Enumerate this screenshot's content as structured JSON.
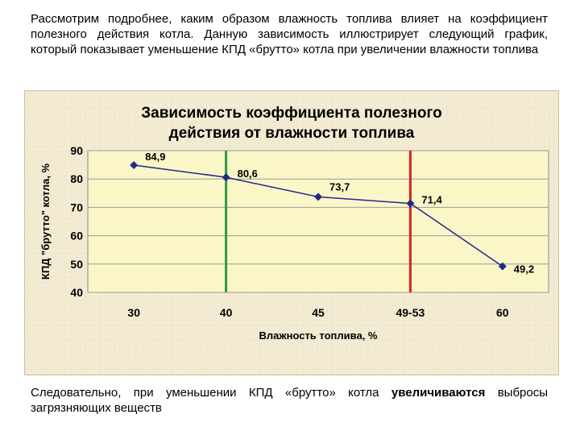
{
  "intro": {
    "text": "Рассмотрим подробнее, каким образом влажность топлива влияет на коэффициент полезного действия котла. Данную зависимость иллюстрирует следующий график, который показывает уменьшение КПД «брутто» котла при увеличении влажности топлива"
  },
  "outro": {
    "text_part1": "Следовательно, при уменьшении КПД «брутто» котла ",
    "text_bold": "увеличиваются",
    "text_part2": " выбросы загрязняющих веществ"
  },
  "chart_data": {
    "type": "line",
    "title_line1": "Зависимость коэффициента полезного",
    "title_line2": "действия от влажности топлива",
    "xlabel": "Влажность топлива, %",
    "ylabel": "КПД \"брутто\" котла, %",
    "categories": [
      "30",
      "40",
      "45",
      "49-53",
      "60"
    ],
    "values": [
      84.9,
      80.6,
      73.7,
      71.4,
      49.2
    ],
    "data_labels": [
      "84,9",
      "80,6",
      "73,7",
      "71,4",
      "49,2"
    ],
    "ylim": [
      40,
      90
    ],
    "yticks": [
      "40",
      "50",
      "60",
      "70",
      "80",
      "90"
    ],
    "grid": "horizontal",
    "line_color": "#1f2a8a",
    "plot_bg": "#fbf6c8",
    "vertical_markers": [
      {
        "category": "40",
        "color": "#2e9a4a"
      },
      {
        "category": "49-53",
        "color": "#e0201a"
      }
    ]
  }
}
